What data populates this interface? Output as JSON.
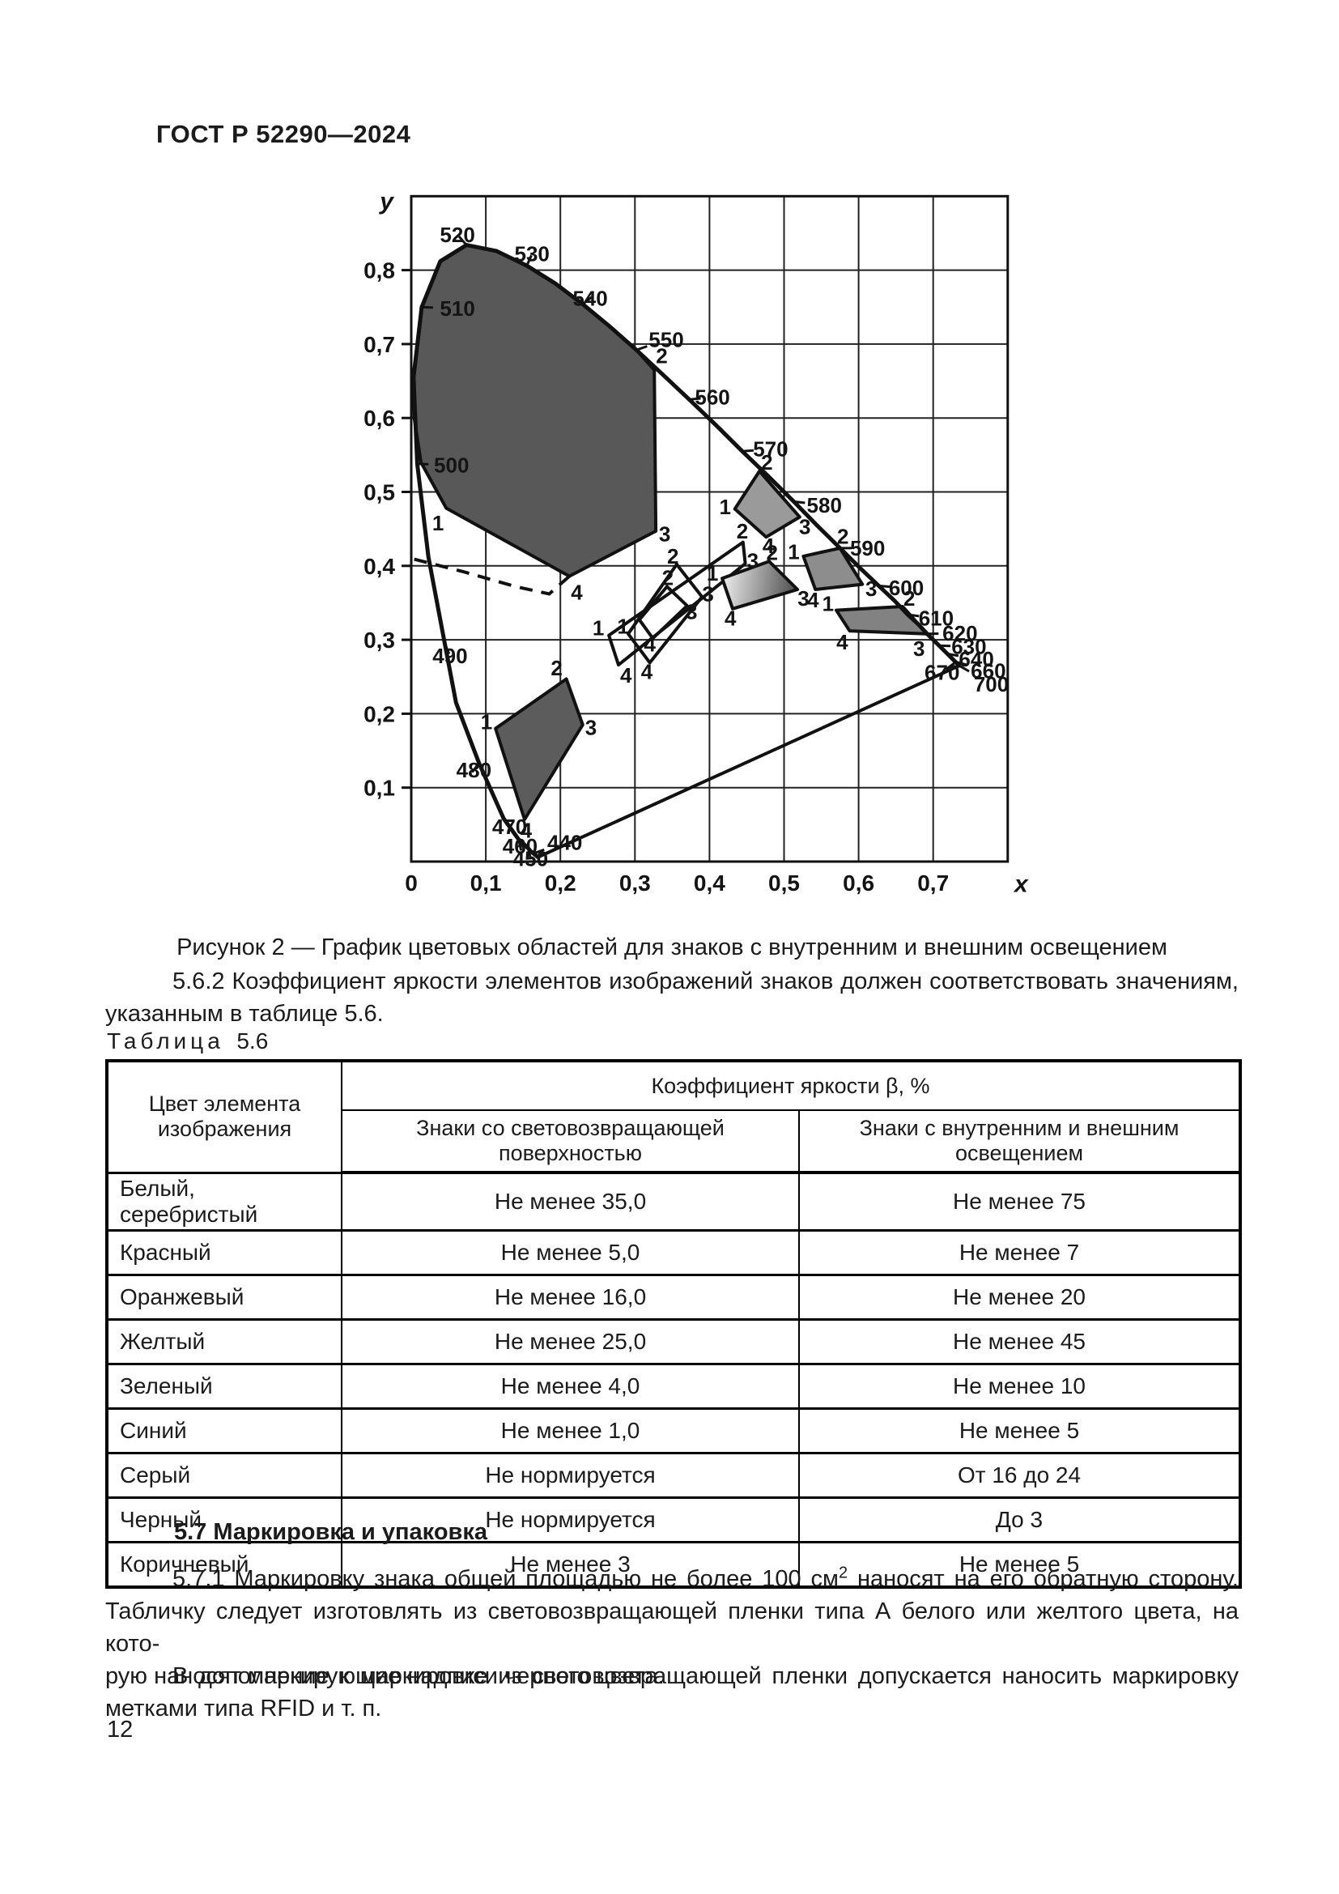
{
  "page": {
    "header": "ГОСТ Р 52290—2024",
    "figure_caption": "Рисунок 2 — График цветовых областей для знаков с внутренним и внешним освещением",
    "para_562": {
      "line1": "5.6.2 Коэффициент яркости элементов изображений знаков должен соответствовать значениям,",
      "line2": "указанным в таблице 5.6."
    },
    "section_57": "5.7 Маркировка и упаковка",
    "para_571": {
      "l1a": "5.7.1 Маркировку знака общей площадью не более 100 см",
      "l1sup": "2",
      "l1b": " наносят на его обратную сторону.",
      "l2": "Табличку следует изготовлять из световозвращающей пленки типа А белого или желтого цвета, на кото-",
      "l3": "рую наносят маркирующие надписи черного цвета."
    },
    "para_rfid": {
      "l1": "В дополнение к маркировке из световозвращающей пленки допускается наносить маркировку",
      "l2": "метками типа RFID и т. п."
    },
    "page_number": "12"
  },
  "table": {
    "label_word": "Таблица",
    "label_number": "5.6",
    "col1_header": "Цвет элемента изображения",
    "span_header": "Коэффициент яркости β, %",
    "sub1": "Знаки со световозвращающей поверхностью",
    "sub2": "Знаки с внутренним и внешним освещением",
    "rows": [
      {
        "color": "Белый, серебристый",
        "retro": "Не менее 35,0",
        "illum": "Не менее 75"
      },
      {
        "color": "Красный",
        "retro": "Не менее 5,0",
        "illum": "Не менее 7"
      },
      {
        "color": "Оранжевый",
        "retro": "Не менее 16,0",
        "illum": "Не менее 20"
      },
      {
        "color": "Желтый",
        "retro": "Не менее 25,0",
        "illum": "Не менее 45"
      },
      {
        "color": "Зеленый",
        "retro": "Не менее 4,0",
        "illum": "Не менее 10"
      },
      {
        "color": "Синий",
        "retro": "Не менее 1,0",
        "illum": "Не менее 5"
      },
      {
        "color": "Серый",
        "retro": "Не нормируется",
        "illum": "От 16 до 24"
      },
      {
        "color": "Черный",
        "retro": "Не нормируется",
        "illum": "До 3"
      },
      {
        "color": "Коричневый",
        "retro": "Не менее 3",
        "illum": "Не менее 5"
      }
    ]
  },
  "chart_data": {
    "type": "area",
    "title": "Рисунок 2 — График цветовых областей для знаков с внутренним и внешним освещением",
    "xlabel": "x",
    "ylabel": "y",
    "xlim": [
      0,
      0.8
    ],
    "ylim": [
      0,
      0.9
    ],
    "grid": true,
    "grid_step": 0.1,
    "plot": {
      "left": 508,
      "bottom": 1064,
      "sx": 921,
      "sy": 913,
      "xmax": 0.8,
      "ymax": 0.9,
      "step": 0.1
    },
    "x_ticks": [
      {
        "v": 0,
        "t": "0"
      },
      {
        "v": 0.1,
        "t": "0,1"
      },
      {
        "v": 0.2,
        "t": "0,2"
      },
      {
        "v": 0.3,
        "t": "0,3"
      },
      {
        "v": 0.4,
        "t": "0,4"
      },
      {
        "v": 0.5,
        "t": "0,5"
      },
      {
        "v": 0.6,
        "t": "0,6"
      },
      {
        "v": 0.7,
        "t": "0,7"
      }
    ],
    "y_ticks": [
      {
        "v": 0.1,
        "t": "0,1"
      },
      {
        "v": 0.2,
        "t": "0,2"
      },
      {
        "v": 0.3,
        "t": "0,3"
      },
      {
        "v": 0.4,
        "t": "0,4"
      },
      {
        "v": 0.5,
        "t": "0,5"
      },
      {
        "v": 0.6,
        "t": "0,6"
      },
      {
        "v": 0.7,
        "t": "0,7"
      },
      {
        "v": 0.8,
        "t": "0,8"
      }
    ],
    "xlabel_pos": [
      0.818,
      -0.041
    ],
    "ylabel_pos": [
      -0.024,
      0.882
    ],
    "locus": [
      [
        0.17,
        0.006
      ],
      [
        0.16,
        0.014
      ],
      [
        0.157,
        0.018
      ],
      [
        0.144,
        0.03
      ],
      [
        0.124,
        0.058
      ],
      [
        0.091,
        0.133
      ],
      [
        0.06,
        0.215
      ],
      [
        0.045,
        0.295
      ],
      [
        0.023,
        0.412
      ],
      [
        0.008,
        0.538
      ],
      [
        0.003,
        0.655
      ],
      [
        0.014,
        0.75
      ],
      [
        0.039,
        0.812
      ],
      [
        0.074,
        0.834
      ],
      [
        0.114,
        0.826
      ],
      [
        0.155,
        0.806
      ],
      [
        0.193,
        0.782
      ],
      [
        0.23,
        0.754
      ],
      [
        0.266,
        0.724
      ],
      [
        0.302,
        0.692
      ],
      [
        0.337,
        0.659
      ],
      [
        0.373,
        0.625
      ],
      [
        0.409,
        0.59
      ],
      [
        0.444,
        0.555
      ],
      [
        0.479,
        0.521
      ],
      [
        0.513,
        0.487
      ],
      [
        0.544,
        0.455
      ],
      [
        0.575,
        0.424
      ],
      [
        0.602,
        0.397
      ],
      [
        0.627,
        0.373
      ],
      [
        0.648,
        0.353
      ],
      [
        0.666,
        0.334
      ],
      [
        0.68,
        0.321
      ],
      [
        0.692,
        0.308
      ],
      [
        0.7,
        0.3
      ],
      [
        0.708,
        0.292
      ],
      [
        0.714,
        0.286
      ],
      [
        0.719,
        0.281
      ],
      [
        0.726,
        0.274
      ],
      [
        0.73,
        0.27
      ],
      [
        0.732,
        0.268
      ],
      [
        0.735,
        0.265
      ]
    ],
    "purple_line": [
      [
        0.735,
        0.265
      ],
      [
        0.17,
        0.006
      ]
    ],
    "dashed_line": [
      [
        0.004,
        0.409
      ],
      [
        0.07,
        0.392
      ],
      [
        0.14,
        0.372
      ],
      [
        0.185,
        0.362
      ],
      [
        0.212,
        0.386
      ]
    ],
    "wavelength_labels": [
      {
        "t": "520",
        "lx": 0.062,
        "ly": 0.848,
        "tx": 0.074,
        "ty": 0.834
      },
      {
        "t": "530",
        "lx": 0.162,
        "ly": 0.822,
        "tx": 0.155,
        "ty": 0.806
      },
      {
        "t": "540",
        "lx": 0.24,
        "ly": 0.762,
        "tx": 0.23,
        "ty": 0.754
      },
      {
        "t": "550",
        "lx": 0.342,
        "ly": 0.706,
        "tx": 0.302,
        "ty": 0.692
      },
      {
        "t": "560",
        "lx": 0.404,
        "ly": 0.628,
        "tx": 0.373,
        "ty": 0.625
      },
      {
        "t": "570",
        "lx": 0.482,
        "ly": 0.558,
        "tx": 0.444,
        "ty": 0.555
      },
      {
        "t": "580",
        "lx": 0.554,
        "ly": 0.482,
        "tx": 0.513,
        "ty": 0.487
      },
      {
        "t": "590",
        "lx": 0.612,
        "ly": 0.424,
        "tx": 0.575,
        "ty": 0.424
      },
      {
        "t": "600",
        "lx": 0.664,
        "ly": 0.37,
        "tx": 0.627,
        "ty": 0.373
      },
      {
        "t": "610",
        "lx": 0.704,
        "ly": 0.329,
        "tx": 0.666,
        "ty": 0.334
      },
      {
        "t": "620",
        "lx": 0.736,
        "ly": 0.309,
        "tx": 0.692,
        "ty": 0.308
      },
      {
        "t": "630",
        "lx": 0.748,
        "ly": 0.291,
        "tx": 0.708,
        "ty": 0.292
      },
      {
        "t": "640",
        "lx": 0.758,
        "ly": 0.274,
        "tx": 0.719,
        "ty": 0.281
      },
      {
        "t": "670",
        "lx": 0.712,
        "ly": 0.256,
        "tx": 0.729,
        "ty": 0.269
      },
      {
        "t": "660",
        "lx": 0.774,
        "ly": 0.258,
        "tx": 0.731,
        "ty": 0.27
      },
      {
        "t": "700",
        "lx": 0.778,
        "ly": 0.24,
        "tx": 0.735,
        "ty": 0.265
      },
      {
        "t": "510",
        "lx": 0.062,
        "ly": 0.748,
        "tx": 0.014,
        "ty": 0.75
      },
      {
        "t": "500",
        "lx": 0.054,
        "ly": 0.536,
        "tx": 0.008,
        "ty": 0.538
      },
      {
        "t": "490",
        "lx": 0.052,
        "ly": 0.278,
        "tx": 0.045,
        "ty": 0.295
      },
      {
        "t": "480",
        "lx": 0.084,
        "ly": 0.124,
        "tx": 0.091,
        "ty": 0.133
      },
      {
        "t": "470",
        "lx": 0.132,
        "ly": 0.047,
        "tx": 0.124,
        "ty": 0.058
      },
      {
        "t": "460",
        "lx": 0.146,
        "ly": 0.021,
        "tx": 0.144,
        "ty": 0.03
      },
      {
        "t": "450",
        "lx": 0.16,
        "ly": 0.004,
        "tx": 0.157,
        "ty": 0.018
      },
      {
        "t": "440",
        "lx": 0.206,
        "ly": 0.026,
        "tx": 0.164,
        "ty": 0.011
      }
    ],
    "regions": [
      {
        "name": "green-region",
        "color": "зеленый",
        "fill": "#585858",
        "points": [
          [
            0.047,
            0.478
          ],
          [
            0.013,
            0.54
          ],
          [
            0.004,
            0.6
          ],
          [
            0.003,
            0.655
          ],
          [
            0.014,
            0.75
          ],
          [
            0.039,
            0.812
          ],
          [
            0.074,
            0.834
          ],
          [
            0.114,
            0.826
          ],
          [
            0.155,
            0.806
          ],
          [
            0.193,
            0.782
          ],
          [
            0.23,
            0.754
          ],
          [
            0.266,
            0.724
          ],
          [
            0.302,
            0.692
          ],
          [
            0.326,
            0.665
          ],
          [
            0.328,
            0.447
          ],
          [
            0.212,
            0.386
          ]
        ],
        "vertex_labels": [
          {
            "t": "1",
            "x": 0.036,
            "y": 0.458
          },
          {
            "t": "2",
            "x": 0.336,
            "y": 0.684
          },
          {
            "t": "3",
            "x": 0.34,
            "y": 0.443
          },
          {
            "t": "4",
            "x": 0.222,
            "y": 0.364
          }
        ]
      },
      {
        "name": "blue-region",
        "color": "синий",
        "fill": "#5c5c5c",
        "points": [
          [
            0.113,
            0.18
          ],
          [
            0.208,
            0.247
          ],
          [
            0.23,
            0.185
          ],
          [
            0.152,
            0.057
          ]
        ],
        "vertex_labels": [
          {
            "t": "1",
            "x": 0.101,
            "y": 0.189
          },
          {
            "t": "2",
            "x": 0.195,
            "y": 0.262
          },
          {
            "t": "3",
            "x": 0.241,
            "y": 0.181
          },
          {
            "t": "4",
            "x": 0.154,
            "y": 0.042
          }
        ]
      },
      {
        "name": "white-region-outer",
        "color": "белый",
        "fill": "none",
        "points": [
          [
            0.265,
            0.306
          ],
          [
            0.445,
            0.432
          ],
          [
            0.448,
            0.403
          ],
          [
            0.278,
            0.266
          ]
        ],
        "vertex_labels": [
          {
            "t": "1",
            "x": 0.251,
            "y": 0.316
          },
          {
            "t": "2",
            "x": 0.444,
            "y": 0.447
          },
          {
            "t": "3",
            "x": 0.458,
            "y": 0.407
          },
          {
            "t": "4",
            "x": 0.288,
            "y": 0.252
          }
        ]
      },
      {
        "name": "white-region-middle",
        "color": "белый",
        "fill": "none",
        "points": [
          [
            0.291,
            0.308
          ],
          [
            0.356,
            0.402
          ],
          [
            0.39,
            0.358
          ],
          [
            0.32,
            0.269
          ]
        ],
        "vertex_labels": [
          {
            "t": "1",
            "x": 0.284,
            "y": 0.318
          },
          {
            "t": "2",
            "x": 0.351,
            "y": 0.413
          },
          {
            "t": "3",
            "x": 0.398,
            "y": 0.362
          },
          {
            "t": "4",
            "x": 0.316,
            "y": 0.257
          }
        ]
      },
      {
        "name": "white-region-inner",
        "color": "белый",
        "fill": "none",
        "points": [
          [
            0.306,
            0.327
          ],
          [
            0.343,
            0.372
          ],
          [
            0.37,
            0.346
          ],
          [
            0.324,
            0.302
          ]
        ],
        "vertex_labels": [
          {
            "t": "2",
            "x": 0.344,
            "y": 0.384
          },
          {
            "t": "3",
            "x": 0.376,
            "y": 0.338
          },
          {
            "t": "4",
            "x": 0.32,
            "y": 0.294
          }
        ]
      },
      {
        "name": "yellow-region",
        "color": "желтый",
        "fill": "#9a9a9a",
        "points": [
          [
            0.434,
            0.477
          ],
          [
            0.467,
            0.528
          ],
          [
            0.521,
            0.466
          ],
          [
            0.476,
            0.439
          ]
        ],
        "vertex_labels": [
          {
            "t": "1",
            "x": 0.421,
            "y": 0.48
          },
          {
            "t": "2",
            "x": 0.477,
            "y": 0.54
          },
          {
            "t": "3",
            "x": 0.528,
            "y": 0.453
          },
          {
            "t": "4",
            "x": 0.479,
            "y": 0.427
          }
        ]
      },
      {
        "name": "brown-region",
        "color": "коричневый",
        "gradient": {
          "from": "#ededed",
          "to": "#4c4c4c",
          "x1": 0.417,
          "y1": 0.383,
          "x2": 0.518,
          "y2": 0.368
        },
        "points": [
          [
            0.417,
            0.383
          ],
          [
            0.48,
            0.406
          ],
          [
            0.518,
            0.368
          ],
          [
            0.431,
            0.342
          ]
        ],
        "vertex_labels": [
          {
            "t": "1",
            "x": 0.404,
            "y": 0.39
          },
          {
            "t": "2",
            "x": 0.484,
            "y": 0.418
          },
          {
            "t": "3",
            "x": 0.526,
            "y": 0.356
          },
          {
            "t": "4",
            "x": 0.428,
            "y": 0.329
          }
        ]
      },
      {
        "name": "orange-region",
        "color": "оранжевый",
        "fill": "#8d8d8d",
        "points": [
          [
            0.526,
            0.413
          ],
          [
            0.575,
            0.424
          ],
          [
            0.605,
            0.375
          ],
          [
            0.542,
            0.368
          ]
        ],
        "vertex_labels": [
          {
            "t": "1",
            "x": 0.513,
            "y": 0.419
          },
          {
            "t": "2",
            "x": 0.579,
            "y": 0.44
          },
          {
            "t": "3",
            "x": 0.617,
            "y": 0.369
          },
          {
            "t": "4",
            "x": 0.539,
            "y": 0.354
          }
        ]
      },
      {
        "name": "red-region",
        "color": "красный",
        "fill": "#828282",
        "points": [
          [
            0.57,
            0.34
          ],
          [
            0.659,
            0.345
          ],
          [
            0.692,
            0.308
          ],
          [
            0.588,
            0.312
          ]
        ],
        "vertex_labels": [
          {
            "t": "1",
            "x": 0.559,
            "y": 0.349
          },
          {
            "t": "2",
            "x": 0.668,
            "y": 0.356
          },
          {
            "t": "3",
            "x": 0.681,
            "y": 0.288
          },
          {
            "t": "4",
            "x": 0.578,
            "y": 0.297
          }
        ]
      }
    ]
  }
}
